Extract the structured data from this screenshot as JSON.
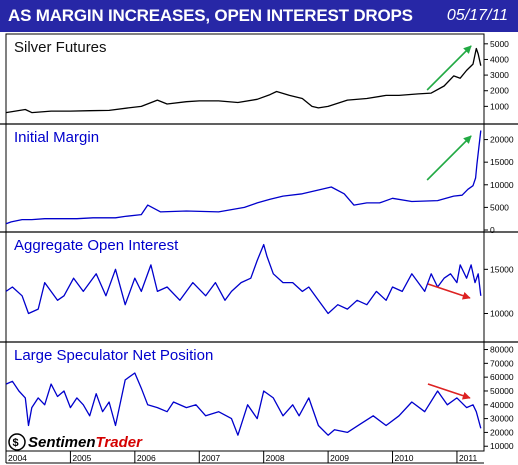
{
  "header": {
    "title": "AS MARGIN INCREASES, OPEN INTEREST DROPS",
    "date": "05/17/11",
    "bg_color": "#2727a6"
  },
  "logo": {
    "prefix": "Sentimen",
    "suffix": "Trader"
  },
  "colors": {
    "silver": "#000000",
    "blue": "#0000cc",
    "arrow_up": "#22aa44",
    "arrow_down": "#dd2222",
    "frame": "#000000"
  },
  "chart_data": [
    {
      "type": "line",
      "title": "Silver Futures",
      "ylim": [
        0,
        5500
      ],
      "yticks": [
        1000,
        2000,
        3000,
        4000,
        5000
      ],
      "arrow": "up",
      "series": [
        {
          "x": [
            2004.0,
            2004.3,
            2004.4,
            2004.7,
            2005.0,
            2005.3,
            2005.6,
            2005.9,
            2006.1,
            2006.35,
            2006.5,
            2006.8,
            2007.0,
            2007.3,
            2007.6,
            2007.9,
            2008.1,
            2008.2,
            2008.4,
            2008.6,
            2008.75,
            2008.85,
            2009.0,
            2009.3,
            2009.6,
            2009.9,
            2010.1,
            2010.4,
            2010.6,
            2010.8,
            2010.95,
            2011.05,
            2011.15,
            2011.25,
            2011.3,
            2011.33,
            2011.37
          ],
          "values": [
            600,
            800,
            600,
            700,
            700,
            720,
            740,
            900,
            1000,
            1400,
            1150,
            1300,
            1350,
            1350,
            1250,
            1450,
            1750,
            1950,
            1700,
            1500,
            1000,
            900,
            1000,
            1400,
            1500,
            1700,
            1700,
            1800,
            1850,
            2300,
            2950,
            2800,
            3300,
            3700,
            4700,
            4350,
            3600
          ]
        }
      ]
    },
    {
      "type": "line",
      "title": "Initial Margin",
      "ylim": [
        0,
        23000
      ],
      "yticks": [
        0,
        5000,
        10000,
        15000,
        20000
      ],
      "arrow": "up",
      "series": [
        {
          "x": [
            2004.0,
            2004.08,
            2004.25,
            2004.4,
            2004.6,
            2005.1,
            2005.35,
            2005.7,
            2005.85,
            2006.1,
            2006.2,
            2006.4,
            2006.8,
            2007.3,
            2007.7,
            2007.9,
            2008.1,
            2008.3,
            2008.6,
            2008.9,
            2009.05,
            2009.25,
            2009.4,
            2009.6,
            2009.8,
            2010.0,
            2010.3,
            2010.7,
            2010.95,
            2011.08,
            2011.17,
            2011.25,
            2011.29,
            2011.31,
            2011.37
          ],
          "values": [
            1400,
            1800,
            2300,
            2300,
            2500,
            2500,
            2700,
            2700,
            3000,
            3400,
            5500,
            4000,
            4200,
            4000,
            5000,
            6000,
            6800,
            7500,
            8000,
            9000,
            9500,
            8000,
            5500,
            6000,
            6000,
            7000,
            6300,
            6500,
            7500,
            7700,
            9000,
            9800,
            11500,
            14500,
            22000
          ]
        }
      ]
    },
    {
      "type": "line",
      "title": "Aggregate Open Interest",
      "ylim": [
        7000,
        19000
      ],
      "yticks": [
        10000,
        15000
      ],
      "arrow": "down",
      "series": [
        {
          "x": [
            2004.0,
            2004.1,
            2004.25,
            2004.35,
            2004.5,
            2004.6,
            2004.8,
            2004.9,
            2005.05,
            2005.2,
            2005.4,
            2005.55,
            2005.7,
            2005.85,
            2006.0,
            2006.1,
            2006.25,
            2006.35,
            2006.5,
            2006.7,
            2006.9,
            2007.1,
            2007.25,
            2007.4,
            2007.5,
            2007.65,
            2007.8,
            2007.9,
            2008.0,
            2008.05,
            2008.15,
            2008.3,
            2008.45,
            2008.6,
            2008.7,
            2008.85,
            2009.0,
            2009.15,
            2009.3,
            2009.45,
            2009.6,
            2009.75,
            2009.9,
            2010.0,
            2010.15,
            2010.3,
            2010.5,
            2010.6,
            2010.7,
            2010.8,
            2010.9,
            2011.0,
            2011.05,
            2011.15,
            2011.22,
            2011.28,
            2011.33,
            2011.37
          ],
          "values": [
            12500,
            13000,
            12000,
            10000,
            10500,
            13500,
            11500,
            12000,
            14000,
            12500,
            14500,
            12000,
            15000,
            11000,
            14000,
            12500,
            15500,
            12500,
            13000,
            11500,
            13500,
            12000,
            13500,
            11500,
            12500,
            13500,
            14000,
            16000,
            17800,
            16500,
            14500,
            13500,
            13500,
            12500,
            13000,
            11500,
            10000,
            11000,
            10500,
            11500,
            11000,
            12500,
            11500,
            13000,
            12500,
            14500,
            12500,
            14500,
            13000,
            14000,
            14500,
            13500,
            15500,
            14000,
            15500,
            13500,
            14500,
            12000
          ]
        }
      ]
    },
    {
      "type": "line",
      "title": "Large Speculator Net Position",
      "ylim": [
        8000,
        84000
      ],
      "yticks": [
        10000,
        20000,
        30000,
        40000,
        50000,
        60000,
        70000,
        80000
      ],
      "xticks": [
        "2004",
        "2005",
        "2006",
        "2007",
        "2008",
        "2009",
        "2010",
        "2011"
      ],
      "arrow": "down",
      "series": [
        {
          "x": [
            2004.0,
            2004.1,
            2004.2,
            2004.3,
            2004.35,
            2004.4,
            2004.5,
            2004.6,
            2004.7,
            2004.8,
            2004.9,
            2005.0,
            2005.1,
            2005.2,
            2005.3,
            2005.4,
            2005.5,
            2005.6,
            2005.7,
            2005.85,
            2006.0,
            2006.1,
            2006.2,
            2006.35,
            2006.5,
            2006.6,
            2006.8,
            2006.95,
            2007.1,
            2007.3,
            2007.5,
            2007.6,
            2007.75,
            2007.9,
            2008.0,
            2008.15,
            2008.3,
            2008.45,
            2008.55,
            2008.7,
            2008.85,
            2009.0,
            2009.1,
            2009.3,
            2009.5,
            2009.7,
            2009.9,
            2010.1,
            2010.3,
            2010.5,
            2010.7,
            2010.85,
            2011.0,
            2011.15,
            2011.25,
            2011.3,
            2011.37
          ],
          "values": [
            55000,
            57000,
            50000,
            45000,
            25000,
            38000,
            45000,
            40000,
            55000,
            46000,
            50000,
            38000,
            45000,
            40000,
            32000,
            48000,
            35000,
            42000,
            25000,
            58000,
            63000,
            52000,
            40000,
            38000,
            35000,
            42000,
            38000,
            40000,
            32000,
            35000,
            30000,
            18000,
            40000,
            30000,
            50000,
            45000,
            32000,
            40000,
            32000,
            45000,
            25000,
            18000,
            22000,
            20000,
            26000,
            32000,
            25000,
            32000,
            42000,
            35000,
            50000,
            40000,
            45000,
            38000,
            40000,
            35000,
            23000
          ]
        }
      ]
    }
  ]
}
